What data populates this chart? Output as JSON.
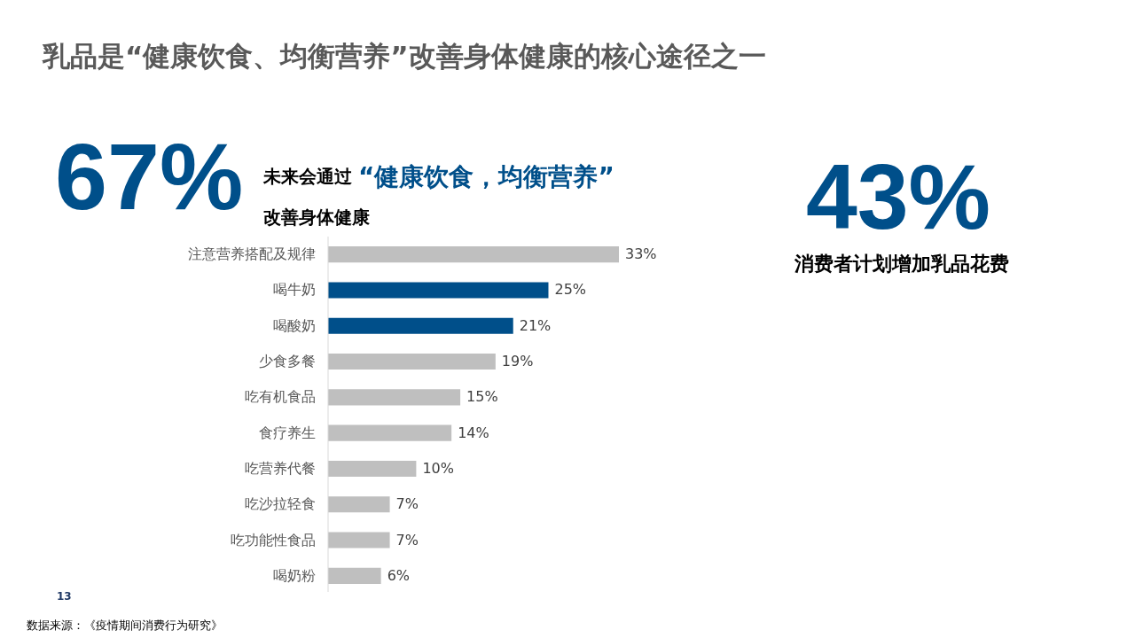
{
  "chart_data": {
    "type": "bar",
    "orientation": "horizontal",
    "title": "乳品是“健康饮食、均衡营养”改善身体健康的核心途径之一",
    "categories": [
      "注意营养搭配及规律",
      "喝牛奶",
      "喝酸奶",
      "少食多餐",
      "吃有机食品",
      "食疗养生",
      "吃营养代餐",
      "吃沙拉轻食",
      "吃功能性食品",
      "喝奶粉"
    ],
    "values": [
      33,
      25,
      21,
      19,
      15,
      14,
      10,
      7,
      7,
      6
    ],
    "colors": [
      "#bfbfbf",
      "#004f8a",
      "#004f8a",
      "#bfbfbf",
      "#bfbfbf",
      "#bfbfbf",
      "#bfbfbf",
      "#bfbfbf",
      "#bfbfbf",
      "#bfbfbf"
    ],
    "value_labels": [
      "33%",
      "25%",
      "21%",
      "19%",
      "15%",
      "14%",
      "10%",
      "7%",
      "7%",
      "6%"
    ],
    "tick_labels": "y",
    "annotations": [
      "67%",
      "未来会通过",
      "“健康饮食，均衡营养”",
      "改善身体健康",
      "43%",
      "消费者计划增加乳品花费",
      "13",
      "数据来源：《疫情期间消费行为研究》"
    ]
  }
}
